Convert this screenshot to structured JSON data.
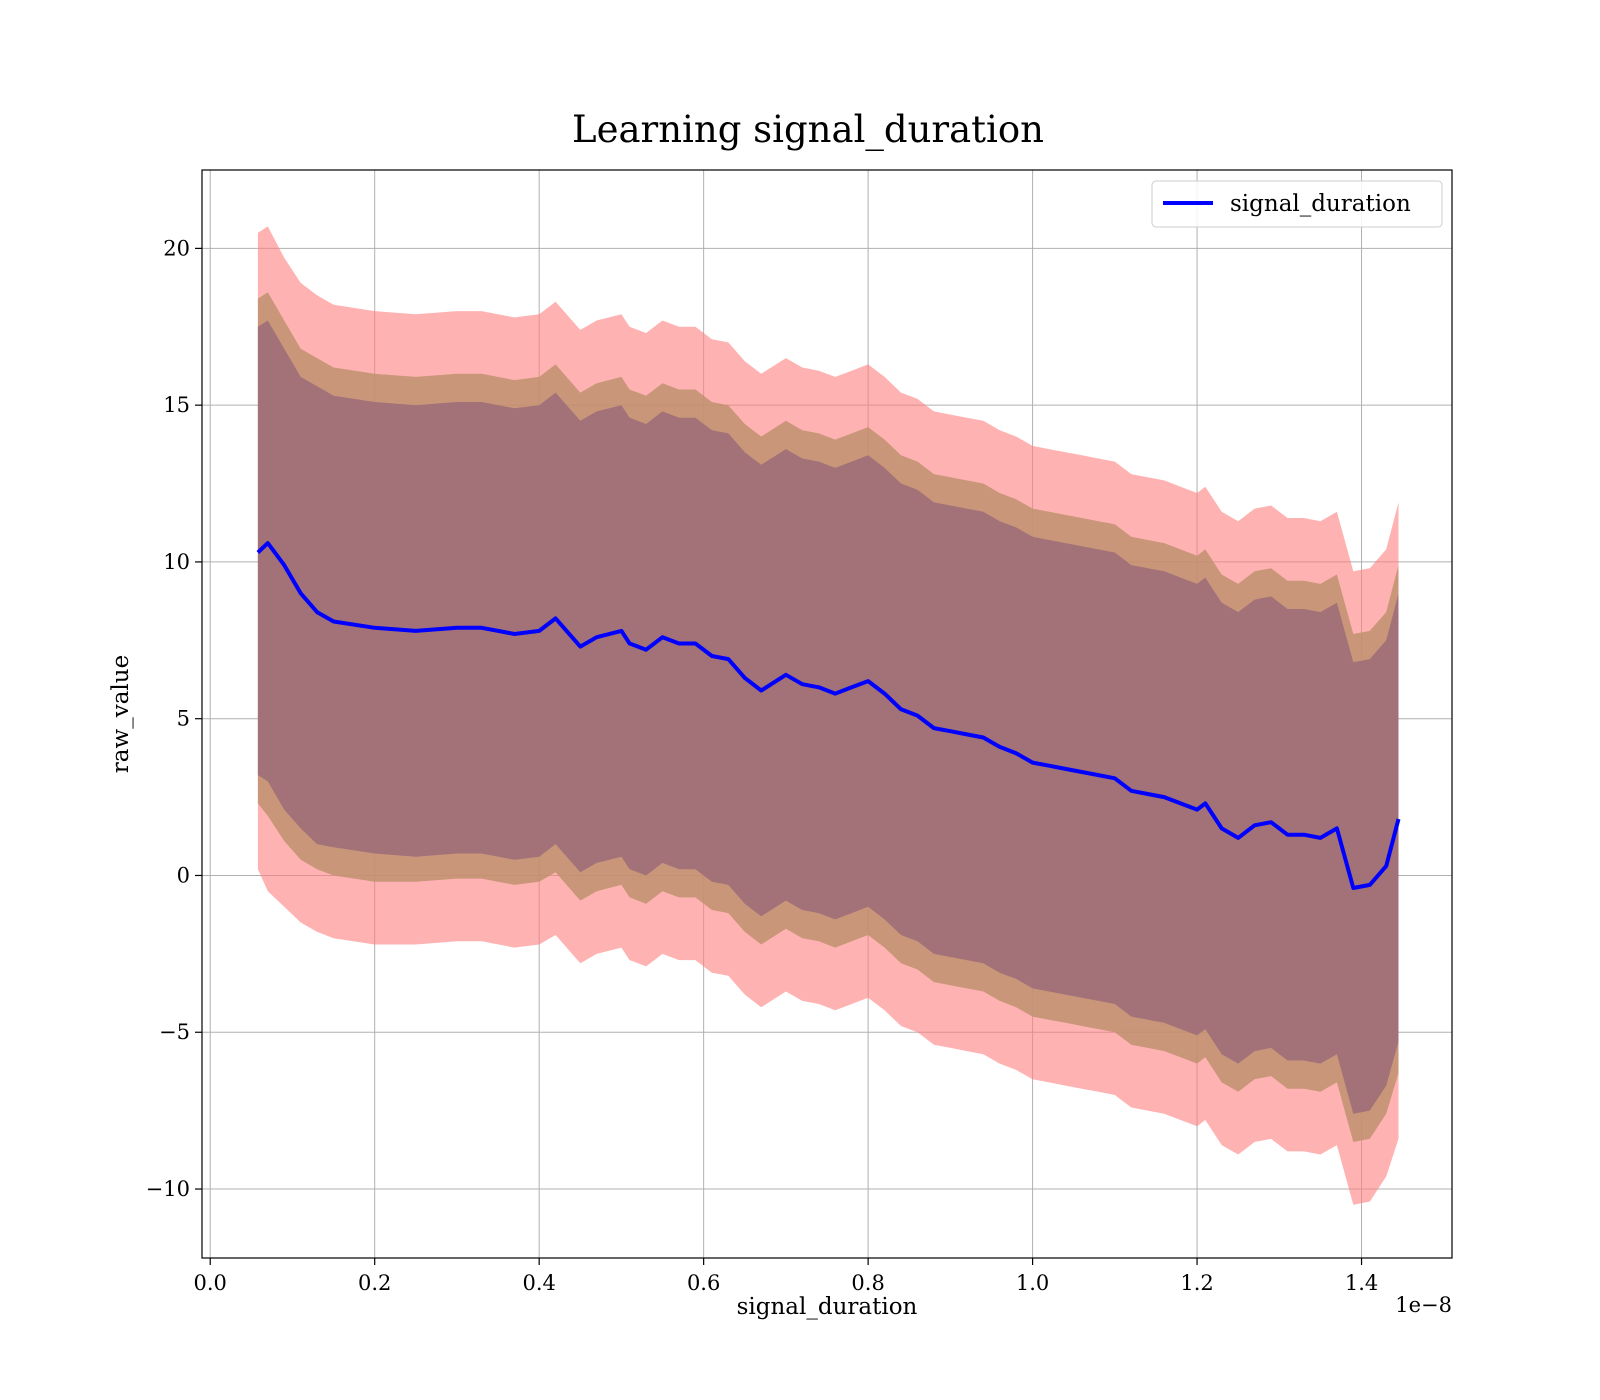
{
  "chart_data": {
    "type": "line",
    "title": "Learning signal_duration",
    "xlabel": "signal_duration",
    "ylabel": "raw_value",
    "x_offset_text": "1e−8",
    "xlim": [
      -0.01,
      1.51
    ],
    "ylim": [
      -12.2,
      22.5
    ],
    "xticks": [
      0.0,
      0.2,
      0.4,
      0.6,
      0.8,
      1.0,
      1.2,
      1.4
    ],
    "xtick_labels": [
      "0.0",
      "0.2",
      "0.4",
      "0.6",
      "0.8",
      "1.0",
      "1.2",
      "1.4"
    ],
    "yticks": [
      -10,
      -5,
      0,
      5,
      10,
      15,
      20
    ],
    "ytick_labels": [
      "−10",
      "−5",
      "0",
      "5",
      "10",
      "15",
      "20"
    ],
    "grid": true,
    "legend_position": "top-right",
    "colors": {
      "line": "#0000ff",
      "band_outer": "#ff7f7f",
      "band_middle": "#c09070",
      "band_inner": "#a07078"
    },
    "series": [
      {
        "name": "signal_duration",
        "x": [
          0.058,
          0.07,
          0.09,
          0.11,
          0.13,
          0.15,
          0.2,
          0.25,
          0.3,
          0.33,
          0.37,
          0.4,
          0.42,
          0.45,
          0.47,
          0.5,
          0.51,
          0.53,
          0.55,
          0.57,
          0.59,
          0.61,
          0.63,
          0.65,
          0.67,
          0.7,
          0.72,
          0.74,
          0.76,
          0.78,
          0.8,
          0.82,
          0.84,
          0.86,
          0.88,
          0.9,
          0.92,
          0.94,
          0.96,
          0.98,
          1.0,
          1.02,
          1.04,
          1.06,
          1.08,
          1.1,
          1.12,
          1.14,
          1.16,
          1.18,
          1.2,
          1.21,
          1.23,
          1.25,
          1.27,
          1.29,
          1.31,
          1.33,
          1.35,
          1.37,
          1.39,
          1.41,
          1.43,
          1.445
        ],
        "y": [
          10.3,
          10.6,
          9.9,
          9.0,
          8.4,
          8.1,
          7.9,
          7.8,
          7.9,
          7.9,
          7.7,
          7.8,
          8.2,
          7.3,
          7.6,
          7.8,
          7.4,
          7.2,
          7.6,
          7.4,
          7.4,
          7.0,
          6.9,
          6.3,
          5.9,
          6.4,
          6.1,
          6.0,
          5.8,
          6.0,
          6.2,
          5.8,
          5.3,
          5.1,
          4.7,
          4.6,
          4.5,
          4.4,
          4.1,
          3.9,
          3.6,
          3.5,
          3.4,
          3.3,
          3.2,
          3.1,
          2.7,
          2.6,
          2.5,
          2.3,
          2.1,
          2.3,
          1.5,
          1.2,
          1.6,
          1.7,
          1.3,
          1.3,
          1.2,
          1.5,
          -0.4,
          -0.3,
          0.3,
          1.8
        ]
      }
    ],
    "bands": [
      {
        "label_visible": false,
        "lower": [
          0.2,
          -0.5,
          -1.0,
          -1.5,
          -1.8,
          -2.0,
          -2.2,
          -2.2,
          -2.1,
          -2.1,
          -2.3,
          -2.2,
          -1.9,
          -2.8,
          -2.5,
          -2.3,
          -2.7,
          -2.9,
          -2.5,
          -2.7,
          -2.7,
          -3.1,
          -3.2,
          -3.8,
          -4.2,
          -3.7,
          -4.0,
          -4.1,
          -4.3,
          -4.1,
          -3.9,
          -4.3,
          -4.8,
          -5.0,
          -5.4,
          -5.5,
          -5.6,
          -5.7,
          -6.0,
          -6.2,
          -6.5,
          -6.6,
          -6.7,
          -6.8,
          -6.9,
          -7.0,
          -7.4,
          -7.5,
          -7.6,
          -7.8,
          -8.0,
          -7.8,
          -8.6,
          -8.9,
          -8.5,
          -8.4,
          -8.8,
          -8.8,
          -8.9,
          -8.6,
          -10.5,
          -10.4,
          -9.6,
          -8.4
        ],
        "upper": [
          20.5,
          20.7,
          19.7,
          18.9,
          18.5,
          18.2,
          18.0,
          17.9,
          18.0,
          18.0,
          17.8,
          17.9,
          18.3,
          17.4,
          17.7,
          17.9,
          17.5,
          17.3,
          17.7,
          17.5,
          17.5,
          17.1,
          17.0,
          16.4,
          16.0,
          16.5,
          16.2,
          16.1,
          15.9,
          16.1,
          16.3,
          15.9,
          15.4,
          15.2,
          14.8,
          14.7,
          14.6,
          14.5,
          14.2,
          14.0,
          13.7,
          13.6,
          13.5,
          13.4,
          13.3,
          13.2,
          12.8,
          12.7,
          12.6,
          12.4,
          12.2,
          12.4,
          11.6,
          11.3,
          11.7,
          11.8,
          11.4,
          11.4,
          11.3,
          11.6,
          9.7,
          9.8,
          10.4,
          11.9
        ]
      },
      {
        "label_visible": false,
        "lower": [
          2.3,
          1.9,
          1.1,
          0.5,
          0.2,
          0.0,
          -0.2,
          -0.2,
          -0.1,
          -0.1,
          -0.3,
          -0.2,
          0.1,
          -0.8,
          -0.5,
          -0.3,
          -0.7,
          -0.9,
          -0.5,
          -0.7,
          -0.7,
          -1.1,
          -1.2,
          -1.8,
          -2.2,
          -1.7,
          -2.0,
          -2.1,
          -2.3,
          -2.1,
          -1.9,
          -2.3,
          -2.8,
          -3.0,
          -3.4,
          -3.5,
          -3.6,
          -3.7,
          -4.0,
          -4.2,
          -4.5,
          -4.6,
          -4.7,
          -4.8,
          -4.9,
          -5.0,
          -5.4,
          -5.5,
          -5.6,
          -5.8,
          -6.0,
          -5.8,
          -6.6,
          -6.9,
          -6.5,
          -6.4,
          -6.8,
          -6.8,
          -6.9,
          -6.6,
          -8.5,
          -8.4,
          -7.6,
          -6.3
        ],
        "upper": [
          18.4,
          18.6,
          17.7,
          16.8,
          16.5,
          16.2,
          16.0,
          15.9,
          16.0,
          16.0,
          15.8,
          15.9,
          16.3,
          15.4,
          15.7,
          15.9,
          15.5,
          15.3,
          15.7,
          15.5,
          15.5,
          15.1,
          15.0,
          14.4,
          14.0,
          14.5,
          14.2,
          14.1,
          13.9,
          14.1,
          14.3,
          13.9,
          13.4,
          13.2,
          12.8,
          12.7,
          12.6,
          12.5,
          12.2,
          12.0,
          11.7,
          11.6,
          11.5,
          11.4,
          11.3,
          11.2,
          10.8,
          10.7,
          10.6,
          10.4,
          10.2,
          10.4,
          9.6,
          9.3,
          9.7,
          9.8,
          9.4,
          9.4,
          9.3,
          9.6,
          7.7,
          7.8,
          8.4,
          9.9
        ]
      },
      {
        "label_visible": false,
        "lower": [
          3.2,
          3.0,
          2.1,
          1.5,
          1.0,
          0.9,
          0.7,
          0.6,
          0.7,
          0.7,
          0.5,
          0.6,
          1.0,
          0.1,
          0.4,
          0.6,
          0.2,
          0.0,
          0.4,
          0.2,
          0.2,
          -0.2,
          -0.3,
          -0.9,
          -1.3,
          -0.8,
          -1.1,
          -1.2,
          -1.4,
          -1.2,
          -1.0,
          -1.4,
          -1.9,
          -2.1,
          -2.5,
          -2.6,
          -2.7,
          -2.8,
          -3.1,
          -3.3,
          -3.6,
          -3.7,
          -3.8,
          -3.9,
          -4.0,
          -4.1,
          -4.5,
          -4.6,
          -4.7,
          -4.9,
          -5.1,
          -4.9,
          -5.7,
          -6.0,
          -5.6,
          -5.5,
          -5.9,
          -5.9,
          -6.0,
          -5.7,
          -7.6,
          -7.5,
          -6.7,
          -5.3
        ],
        "upper": [
          17.5,
          17.7,
          16.8,
          15.9,
          15.6,
          15.3,
          15.1,
          15.0,
          15.1,
          15.1,
          14.9,
          15.0,
          15.4,
          14.5,
          14.8,
          15.0,
          14.6,
          14.4,
          14.8,
          14.6,
          14.6,
          14.2,
          14.1,
          13.5,
          13.1,
          13.6,
          13.3,
          13.2,
          13.0,
          13.2,
          13.4,
          13.0,
          12.5,
          12.3,
          11.9,
          11.8,
          11.7,
          11.6,
          11.3,
          11.1,
          10.8,
          10.7,
          10.6,
          10.5,
          10.4,
          10.3,
          9.9,
          9.8,
          9.7,
          9.5,
          9.3,
          9.5,
          8.7,
          8.4,
          8.8,
          8.9,
          8.5,
          8.5,
          8.4,
          8.7,
          6.8,
          6.9,
          7.5,
          9.0
        ]
      }
    ]
  }
}
